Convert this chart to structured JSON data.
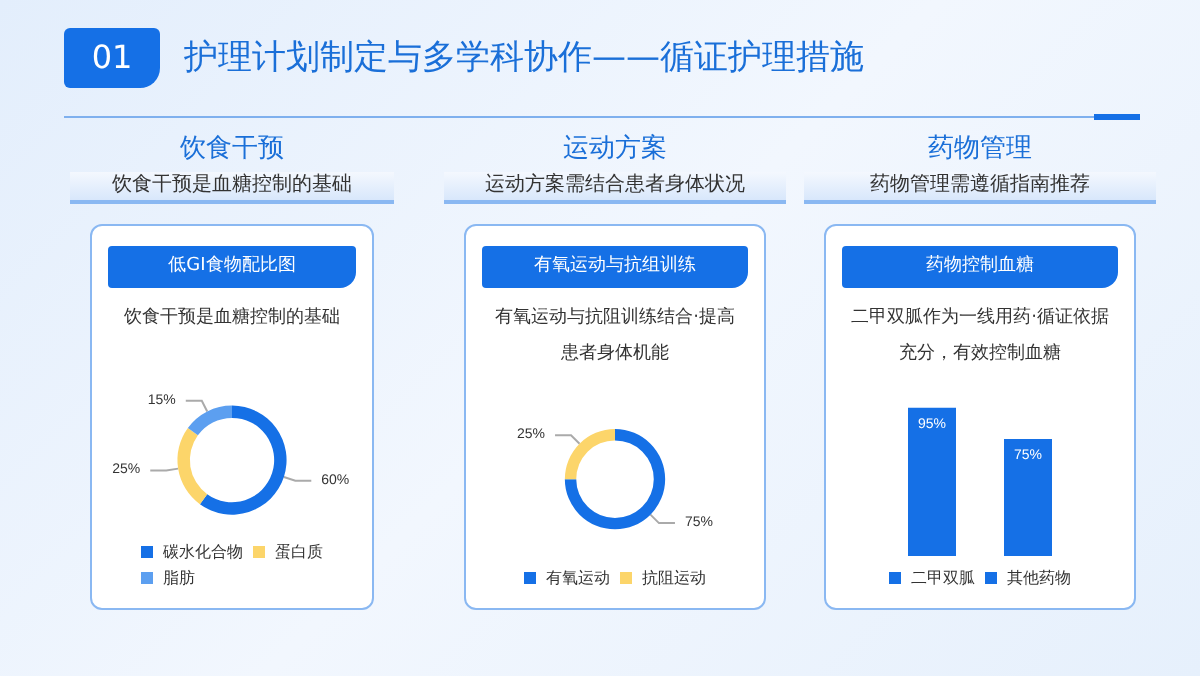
{
  "chart_data": [
    {
      "type": "other",
      "title": "护理计划制定与多学科协作——循证护理措施",
      "annotations": [
        "01"
      ]
    },
    {
      "type": "donut",
      "title": "低GI食物配比图",
      "subtitle": "饮食干预是血糖控制的基础",
      "annotations": [
        "饮食干预",
        "饮食干预是血糖控制的基础"
      ],
      "categories": [
        "碳水化合物",
        "蛋白质",
        "脂肪"
      ],
      "values": [
        60,
        25,
        15
      ],
      "value_labels": [
        "60%",
        "25%",
        "15%"
      ],
      "colors": [
        "#1570e6",
        "#fcd56a",
        "#5c9ff0"
      ],
      "legend": "bottom"
    },
    {
      "type": "donut",
      "title": "有氧运动与抗组训练",
      "subtitle": "有氧运动与抗阻训练结合·提高患者身体机能",
      "annotations": [
        "运动方案",
        "运动方案需结合患者身体状况"
      ],
      "categories": [
        "有氧运动",
        "抗阻运动"
      ],
      "values": [
        75,
        25
      ],
      "value_labels": [
        "75%",
        "25%"
      ],
      "colors": [
        "#1570e6",
        "#fcd56a"
      ],
      "legend": "bottom"
    },
    {
      "type": "bar",
      "title": "药物控制血糖",
      "subtitle": "二甲双胍作为一线用药·循证依据充分，有效控制血糖",
      "annotations": [
        "药物管理",
        "药物管理需遵循指南推荐"
      ],
      "categories": [
        null
      ],
      "series": [
        {
          "name": "二甲双胍",
          "color": "#1570e6",
          "values": [
            95
          ],
          "value_labels": [
            "95%"
          ]
        },
        {
          "name": "其他药物",
          "color": "#1570e6",
          "values": [
            75
          ],
          "value_labels": [
            "75%"
          ]
        }
      ],
      "legend": "bottom"
    }
  ]
}
